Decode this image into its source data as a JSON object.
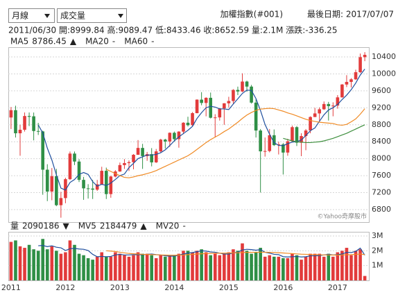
{
  "header": {
    "period_select": "月線",
    "indicator_select": "成交量",
    "index_name": "加權指數(#001)",
    "last_date": "最後日期: 2017/07/07"
  },
  "info": "2011/06/30 開:8999.84 高:9089.47 低:8433.46 收:8652.59 量:2.1M 漲跌:-336.25",
  "chart_data": [
    {
      "type": "candlestick",
      "watermark": "©Yahoo奇摩股市",
      "up_color": "#e23b3b",
      "down_color": "#2f8f46",
      "xlim": [
        -0.6,
        78.9
      ],
      "ylim": [
        6505,
        10630
      ],
      "yticks": [
        6800,
        7200,
        7600,
        8000,
        8400,
        8800,
        9200,
        9600,
        10000,
        10400
      ],
      "grid": true,
      "open": [
        8972,
        9145,
        8600,
        8683,
        9007,
        9000,
        8653,
        8644,
        7741,
        7225,
        7588,
        6904,
        7072,
        7517,
        8121,
        7933,
        7501,
        7301,
        7296,
        7270,
        7397,
        7715,
        7166,
        7580,
        7699,
        7850,
        7897,
        7918,
        8093,
        8254,
        8062,
        8107,
        7914,
        8173,
        8450,
        8406,
        8611,
        8462,
        8639,
        8849,
        8791,
        9075,
        9393,
        9315,
        9436,
        8966,
        8974,
        9187,
        9307,
        9361,
        9622,
        9586,
        9820,
        9701,
        9323,
        8665,
        8174,
        8181,
        8554,
        8320,
        8338,
        8145,
        8411,
        8744,
        8377,
        8535,
        8666,
        8984,
        9068,
        9166,
        9290,
        9240,
        9253,
        9447,
        9750,
        9811,
        9872,
        10040,
        10395
      ],
      "high": [
        9220,
        9250,
        8800,
        9090,
        9090,
        9089,
        8845,
        8660,
        7870,
        7780,
        7760,
        7220,
        7550,
        8170,
        8170,
        7990,
        7570,
        7400,
        7500,
        7500,
        7810,
        7790,
        7600,
        7730,
        7910,
        7990,
        7960,
        8110,
        8440,
        8350,
        8160,
        8250,
        8230,
        8470,
        8470,
        8620,
        8640,
        8650,
        8860,
        8990,
        9100,
        9400,
        9570,
        9450,
        9560,
        9050,
        9190,
        9310,
        9460,
        9640,
        9700,
        10014,
        9840,
        9740,
        9400,
        8700,
        8500,
        8700,
        8690,
        8400,
        8370,
        8470,
        8780,
        8770,
        8600,
        8700,
        9000,
        9200,
        9210,
        9350,
        9340,
        9330,
        9500,
        9760,
        9970,
        9900,
        10100,
        10480,
        10513
      ],
      "low": [
        8700,
        8500,
        8070,
        8640,
        8770,
        8433,
        8560,
        7150,
        7000,
        7020,
        6880,
        6609,
        6950,
        7500,
        7850,
        7450,
        7030,
        7060,
        7050,
        7240,
        7390,
        7050,
        7080,
        7560,
        7690,
        7760,
        7710,
        7750,
        8090,
        7760,
        7950,
        7820,
        7900,
        8150,
        8240,
        8280,
        8400,
        8260,
        8580,
        8760,
        8770,
        9070,
        9260,
        9000,
        8950,
        8500,
        8900,
        8800,
        9210,
        9300,
        9500,
        9570,
        9580,
        9300,
        8500,
        7203,
        8050,
        8150,
        8300,
        8100,
        7627,
        8070,
        8400,
        8300,
        8060,
        8200,
        8600,
        8980,
        8900,
        9150,
        8900,
        9000,
        9180,
        9440,
        9690,
        9680,
        9860,
        10020,
        10300
      ],
      "close": [
        9145,
        8600,
        8683,
        9007,
        8988,
        8653,
        8644,
        7741,
        7225,
        7588,
        6904,
        7072,
        7517,
        8121,
        7933,
        7501,
        7301,
        7296,
        7270,
        7397,
        7715,
        7166,
        7580,
        7699,
        7850,
        7897,
        7918,
        8093,
        8254,
        8062,
        8107,
        7914,
        8173,
        8450,
        8406,
        8611,
        8462,
        8639,
        8849,
        8791,
        9075,
        9393,
        9315,
        9436,
        8966,
        8974,
        9187,
        9307,
        9361,
        9622,
        9586,
        9820,
        9701,
        9323,
        8665,
        8174,
        8181,
        8554,
        8320,
        8338,
        8145,
        8411,
        8744,
        8377,
        8535,
        8666,
        8984,
        9068,
        9166,
        9290,
        9240,
        9253,
        9447,
        9750,
        9811,
        9872,
        10040,
        10395,
        10450
      ],
      "series": [
        {
          "name": "MA5",
          "color": "#1f4f9e",
          "legend_value": "8786.45",
          "legend_mark": "▲",
          "legend_mark_color": "#e23b3b",
          "values": [
            null,
            null,
            null,
            null,
            null,
            null,
            8795,
            8607,
            8250,
            7970,
            7620,
            7306,
            7261,
            7440,
            7509,
            7629,
            7675,
            7630,
            7460,
            7353,
            7396,
            7369,
            7426,
            7511,
            7602,
            7638,
            7789,
            7891,
            8002,
            8045,
            8087,
            8086,
            8102,
            8141,
            8210,
            8311,
            8420,
            8514,
            8593,
            8670,
            8763,
            8949,
            9085,
            9202,
            9237,
            9217,
            9176,
            9174,
            9159,
            9290,
            9413,
            9539,
            9618,
            9610,
            9419,
            9137,
            8809,
            8579,
            8379,
            8313,
            8308,
            8354,
            8392,
            8403,
            8442,
            8547,
            8661,
            8726,
            8884,
            9035,
            9150,
            9203,
            9279,
            9396,
            9500,
            9627,
            9784,
            9974,
            10114
          ]
        },
        {
          "name": "MA20",
          "color": "#f08a24",
          "legend_value": "-",
          "values": [
            null,
            null,
            null,
            null,
            null,
            null,
            null,
            null,
            null,
            null,
            null,
            null,
            null,
            null,
            null,
            null,
            null,
            null,
            null,
            null,
            null,
            7750,
            7700,
            7650,
            7600,
            7560,
            7550,
            7570,
            7600,
            7620,
            7650,
            7680,
            7720,
            7770,
            7820,
            7870,
            7920,
            7970,
            8020,
            8070,
            8140,
            8220,
            8300,
            8380,
            8450,
            8510,
            8570,
            8640,
            8700,
            8780,
            8860,
            8950,
            9030,
            9090,
            9140,
            9170,
            9180,
            9190,
            9180,
            9150,
            9120,
            9080,
            9050,
            9010,
            8970,
            8930,
            8900,
            8880,
            8860,
            8850,
            8840,
            8830,
            8800,
            8790,
            8810,
            8870,
            8940,
            9050,
            9180
          ]
        },
        {
          "name": "MA60",
          "color": "#3e8f3e",
          "legend_value": "-",
          "values": [
            null,
            null,
            null,
            null,
            null,
            null,
            null,
            null,
            null,
            null,
            null,
            null,
            null,
            null,
            null,
            null,
            null,
            null,
            null,
            null,
            null,
            null,
            null,
            null,
            null,
            null,
            null,
            null,
            null,
            null,
            null,
            null,
            null,
            null,
            null,
            null,
            null,
            null,
            null,
            null,
            null,
            null,
            null,
            null,
            null,
            null,
            null,
            null,
            null,
            null,
            null,
            null,
            null,
            null,
            null,
            null,
            null,
            null,
            null,
            null,
            8480,
            8450,
            8420,
            8400,
            8390,
            8380,
            8380,
            8390,
            8400,
            8420,
            8450,
            8480,
            8520,
            8560,
            8600,
            8650,
            8700,
            8750,
            8800
          ]
        }
      ]
    },
    {
      "type": "bar",
      "xlim": [
        -0.6,
        78.9
      ],
      "ylim": [
        0,
        3.28
      ],
      "yticks": [
        {
          "value": 1,
          "label": "1M"
        },
        {
          "value": 2,
          "label": "2M"
        },
        {
          "value": 3,
          "label": "3M"
        }
      ],
      "grid": true,
      "xticks": [
        {
          "value": 0,
          "label": "2011"
        },
        {
          "value": 12,
          "label": "2012"
        },
        {
          "value": 24,
          "label": "2013"
        },
        {
          "value": 36,
          "label": "2014"
        },
        {
          "value": 48,
          "label": "2015"
        },
        {
          "value": 60,
          "label": "2016"
        },
        {
          "value": 72,
          "label": "2017"
        }
      ],
      "series": [
        {
          "name": "量",
          "color": "#333333",
          "legend_value": "2090186",
          "legend_mark": "▼",
          "legend_mark_color": "#2f8f46",
          "values": [
            2.6,
            2.7,
            2.3,
            2.2,
            2.4,
            2.1,
            2.0,
            2.8,
            2.1,
            2.3,
            2.0,
            1.8,
            1.9,
            2.7,
            2.4,
            1.8,
            1.7,
            1.5,
            1.4,
            1.6,
            1.9,
            1.6,
            1.6,
            1.9,
            1.8,
            1.7,
            1.6,
            1.7,
            1.9,
            1.8,
            1.8,
            1.7,
            1.5,
            1.7,
            1.6,
            1.7,
            1.7,
            1.8,
            2.0,
            2.0,
            1.9,
            2.0,
            2.1,
            1.9,
            1.7,
            1.8,
            1.7,
            1.8,
            1.9,
            2.1,
            2.0,
            2.5,
            2.0,
            1.8,
            1.9,
            2.2,
            1.6,
            1.7,
            1.6,
            1.6,
            1.5,
            1.5,
            1.8,
            1.7,
            1.4,
            1.6,
            1.8,
            1.8,
            1.8,
            1.6,
            1.8,
            1.6,
            1.9,
            2.0,
            2.2,
            1.7,
            2.0,
            2.1,
            0.3
          ]
        },
        {
          "name": "MV5",
          "color": "#1f4f9e",
          "legend_value": "2184479",
          "legend_mark": "▲",
          "legend_mark_color": "#e23b3b",
          "values": [
            null,
            null,
            null,
            null,
            null,
            null,
            2.34,
            2.36,
            2.28,
            2.34,
            2.24,
            2.2,
            2.02,
            2.14,
            2.16,
            2.12,
            2.1,
            2.02,
            1.76,
            1.6,
            1.62,
            1.6,
            1.62,
            1.72,
            1.76,
            1.72,
            1.72,
            1.74,
            1.74,
            1.74,
            1.76,
            1.78,
            1.74,
            1.72,
            1.66,
            1.64,
            1.64,
            1.7,
            1.78,
            1.84,
            1.88,
            1.94,
            2.0,
            1.98,
            1.92,
            1.9,
            1.84,
            1.78,
            1.78,
            1.86,
            1.9,
            2.06,
            2.1,
            2.08,
            2.04,
            2.08,
            1.9,
            1.84,
            1.76,
            1.74,
            1.6,
            1.58,
            1.6,
            1.62,
            1.58,
            1.6,
            1.66,
            1.66,
            1.68,
            1.72,
            1.76,
            1.72,
            1.74,
            1.78,
            1.9,
            1.88,
            1.96,
            2.18,
            1.7
          ]
        },
        {
          "name": "MV20",
          "color": "#f08a24",
          "legend_value": "-",
          "values": [
            null,
            null,
            null,
            null,
            null,
            null,
            null,
            null,
            null,
            null,
            null,
            null,
            null,
            null,
            null,
            null,
            null,
            null,
            null,
            null,
            null,
            2.0,
            1.98,
            1.95,
            1.9,
            1.86,
            1.82,
            1.8,
            1.78,
            1.76,
            1.75,
            1.74,
            1.73,
            1.72,
            1.71,
            1.7,
            1.7,
            1.71,
            1.72,
            1.74,
            1.76,
            1.78,
            1.8,
            1.81,
            1.82,
            1.83,
            1.84,
            1.84,
            1.85,
            1.86,
            1.87,
            1.88,
            1.89,
            1.89,
            1.9,
            1.9,
            1.9,
            1.89,
            1.88,
            1.87,
            1.85,
            1.83,
            1.81,
            1.79,
            1.77,
            1.76,
            1.75,
            1.74,
            1.73,
            1.72,
            1.72,
            1.71,
            1.71,
            1.72,
            1.73,
            1.74,
            1.76,
            1.78,
            1.74
          ]
        }
      ]
    }
  ]
}
